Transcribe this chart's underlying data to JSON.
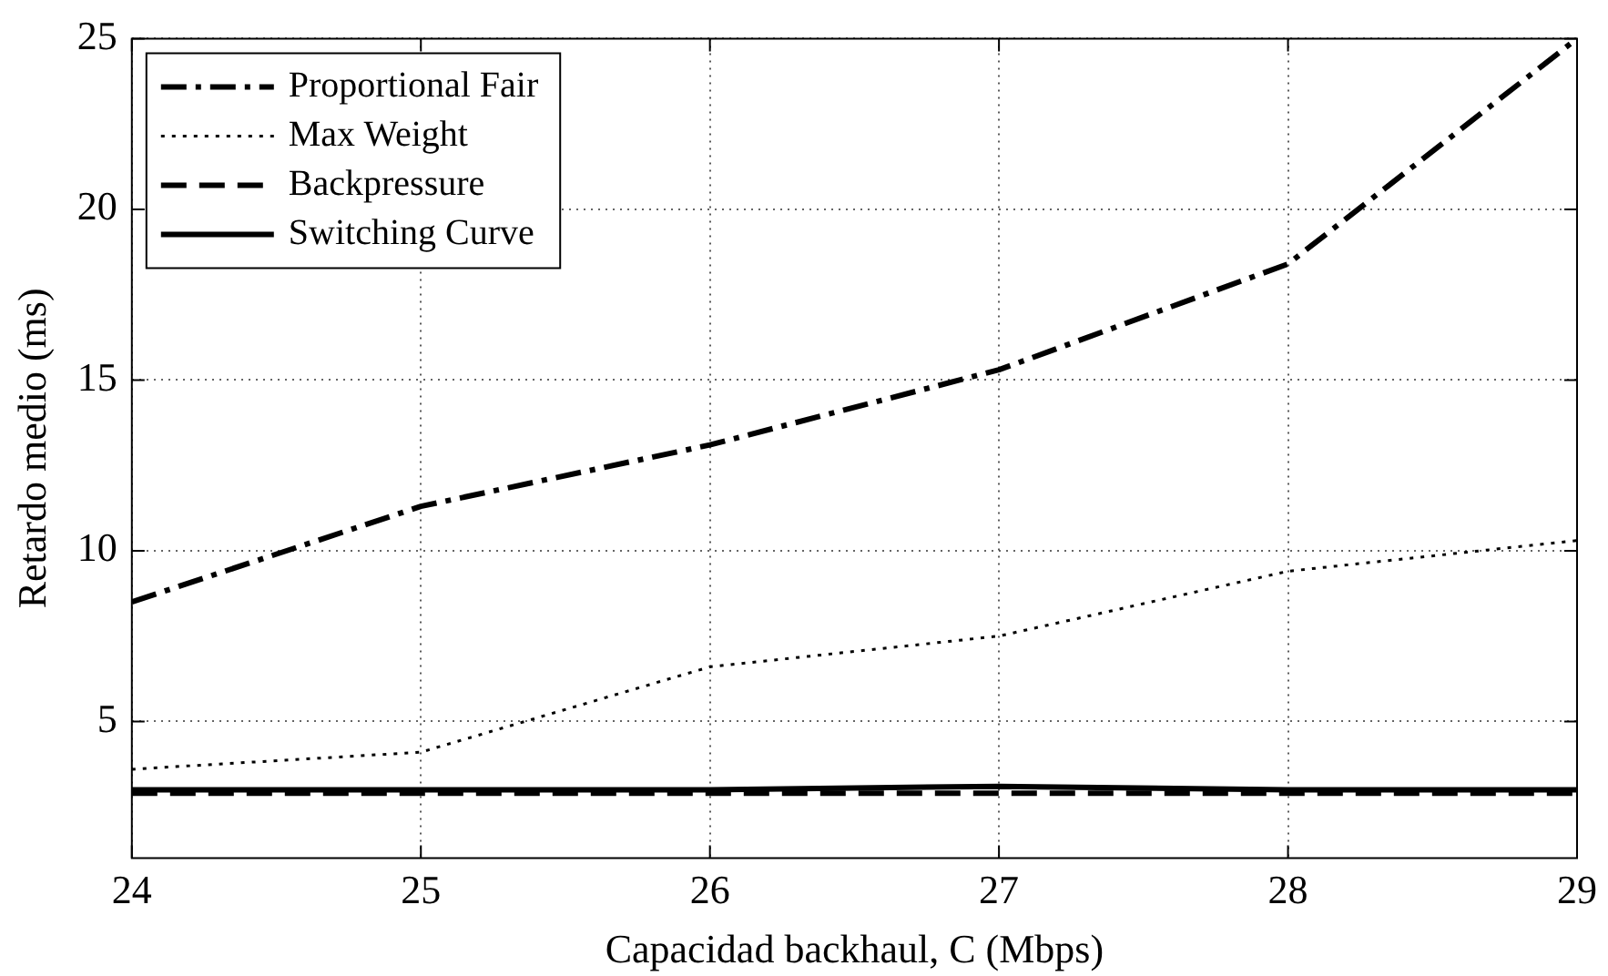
{
  "chart_data": {
    "type": "line",
    "xlabel": "Capacidad backhaul, C (Mbps)",
    "ylabel": "Retardo medio (ms)",
    "x": [
      24,
      25,
      26,
      27,
      28,
      29
    ],
    "xlim": [
      24,
      29
    ],
    "xticks": [
      24,
      25,
      26,
      27,
      28,
      29
    ],
    "ylim": [
      1,
      25
    ],
    "yticks": [
      5,
      10,
      15,
      20,
      25
    ],
    "grid": true,
    "legend": "top left",
    "marker": "none",
    "series": [
      {
        "name": "Proportional Fair",
        "color": "#000000",
        "line_style": "dashdot",
        "values": [
          8.5,
          11.3,
          13.1,
          15.3,
          18.4,
          25
        ]
      },
      {
        "name": "Max Weight",
        "color": "#000000",
        "line_style": "dotted",
        "values": [
          3.6,
          4.1,
          6.6,
          7.5,
          9.4,
          10.3
        ]
      },
      {
        "name": "Backpressure",
        "color": "#000000",
        "line_style": "dashed",
        "values": [
          2.9,
          2.9,
          2.9,
          2.9,
          2.9,
          2.9
        ]
      },
      {
        "name": "Switching Curve",
        "color": "#000000",
        "line_style": "solid",
        "values": [
          3.0,
          3.0,
          3.0,
          3.1,
          3.0,
          3.0
        ]
      }
    ]
  }
}
